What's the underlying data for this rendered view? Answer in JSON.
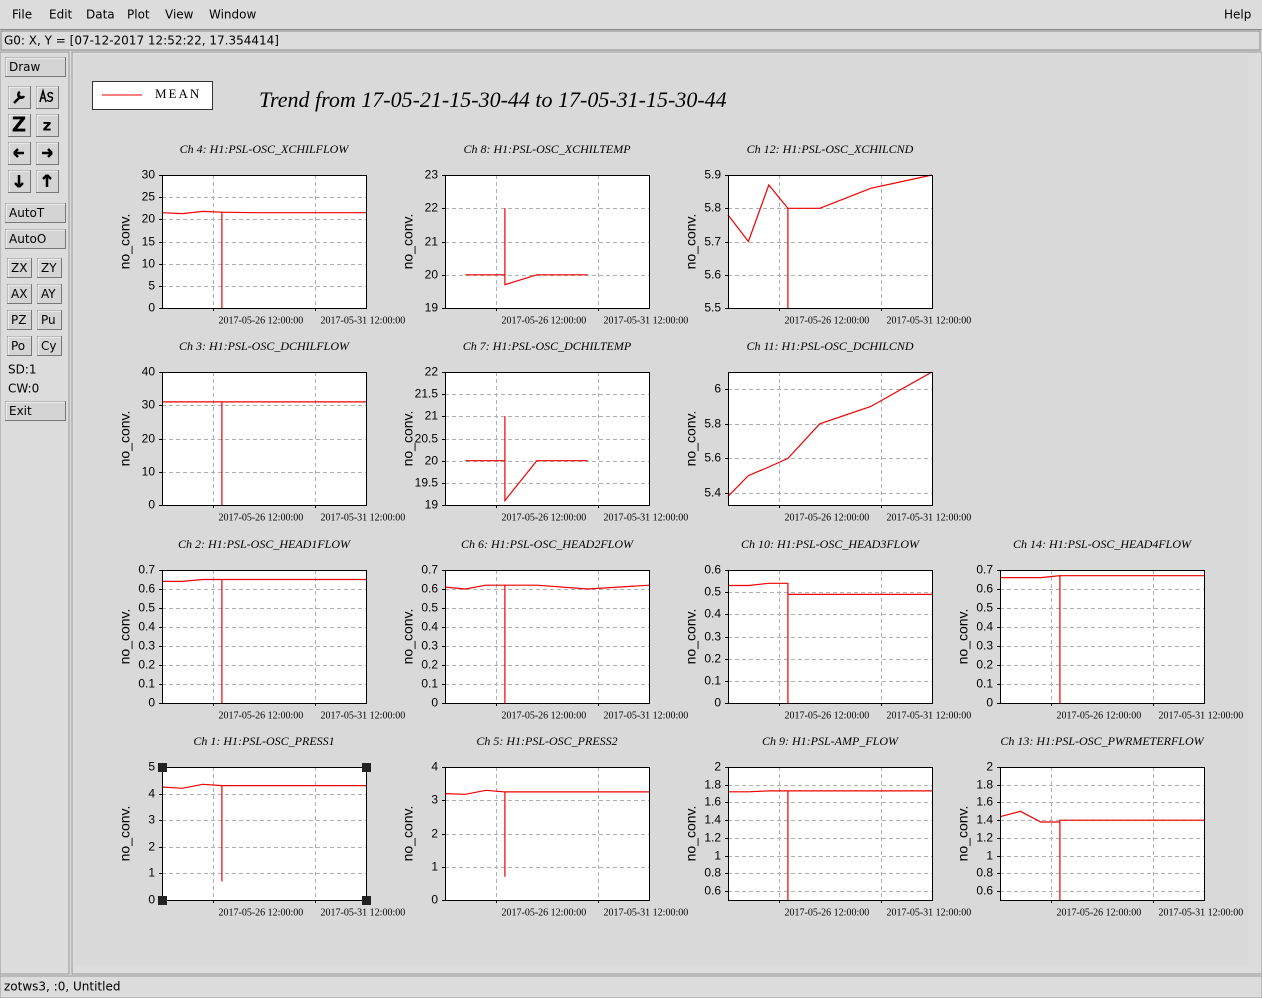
{
  "menu": [
    "File",
    "Edit",
    "Data",
    "Plot",
    "View",
    "Window"
  ],
  "help": "Help",
  "status": "G0: X, Y = [07-12-2017 12:52:22, 17.354414]",
  "toolbar": {
    "draw": "Draw",
    "zoom_big": "Z",
    "zoom_small": "z",
    "auto_t": "AutoT",
    "auto_o": "AutoO",
    "buttons": [
      "ZX",
      "ZY",
      "AX",
      "AY",
      "PZ",
      "Pu",
      "Po",
      "Cy"
    ],
    "sd": "SD:1",
    "cw": "CW:0",
    "exit": "Exit"
  },
  "legend": {
    "label": "MEAN",
    "color": "#ee0000"
  },
  "title": "Trend from 17-05-21-15-30-44 to 17-05-31-15-30-44",
  "footer": "zotws3, :0, Untitled",
  "chart_data": [
    {
      "type": "line",
      "title": "Ch 4: H1:PSL-OSC_XCHILFLOW",
      "y_label": "no_conv.",
      "color": "#ee0000",
      "x": [
        "2017-05-24 00:00:00",
        "2017-05-25 00:00:00",
        "2017-05-26 00:00:00",
        "2017-05-26 22:30:00",
        "2017-05-26 22:30:00",
        "2017-05-26 22:30:00",
        "2017-05-28 12:00:00",
        "2017-05-31 00:00:00",
        "2017-06-03 00:00:00"
      ],
      "values": [
        21.5,
        21.3,
        21.8,
        21.6,
        0,
        21.6,
        21.5,
        21.5,
        21.5
      ],
      "xlim": [
        "2017-05-24 00:00:00",
        "2017-06-03 00:00:00"
      ],
      "xticks": [
        "2017-05-26 12:00:00",
        "2017-05-31 12:00:00"
      ],
      "ylim": [
        0,
        30
      ],
      "yticks": [
        0,
        5,
        10,
        15,
        20,
        25,
        30
      ],
      "grid": true
    },
    {
      "type": "line",
      "title": "Ch 8: H1:PSL-OSC_XCHILTEMP",
      "y_label": "no_conv.",
      "color": "#ee0000",
      "x": [
        "2017-05-24 00:00:00",
        "2017-05-25 00:00:00",
        "2017-05-26 00:00:00",
        "2017-05-26 22:30:00",
        "2017-05-26 22:30:00",
        "2017-05-26 22:30:00",
        "2017-05-28 12:00:00",
        "2017-05-31 00:00:00",
        "2017-06-03 00:00:00"
      ],
      "values": [
        null,
        20,
        20,
        20,
        22,
        19.7,
        20,
        20,
        null
      ],
      "xlim": [
        "2017-05-24 00:00:00",
        "2017-06-03 00:00:00"
      ],
      "xticks": [
        "2017-05-26 12:00:00",
        "2017-05-31 12:00:00"
      ],
      "ylim": [
        19,
        23
      ],
      "yticks": [
        19,
        20,
        21,
        22,
        23
      ],
      "grid": true
    },
    {
      "type": "line",
      "title": "Ch 12: H1:PSL-OSC_XCHILCND",
      "y_label": "no_conv.",
      "color": "#ee0000",
      "x": [
        "2017-05-24 00:00:00",
        "2017-05-25 00:00:00",
        "2017-05-26 00:00:00",
        "2017-05-26 22:30:00",
        "2017-05-26 22:30:00",
        "2017-05-26 22:30:00",
        "2017-05-28 12:00:00",
        "2017-05-31 00:00:00",
        "2017-06-03 00:00:00"
      ],
      "values": [
        5.78,
        5.7,
        5.87,
        5.8,
        5.5,
        5.8,
        5.8,
        5.86,
        5.9
      ],
      "xlim": [
        "2017-05-24 00:00:00",
        "2017-06-03 00:00:00"
      ],
      "xticks": [
        "2017-05-26 12:00:00",
        "2017-05-31 12:00:00"
      ],
      "ylim": [
        5.5,
        5.9
      ],
      "yticks": [
        5.5,
        5.6,
        5.7,
        5.8,
        5.9
      ],
      "grid": true
    },
    {
      "type": "line",
      "title": "Ch 3: H1:PSL-OSC_DCHILFLOW",
      "y_label": "no_conv.",
      "color": "#ee0000",
      "x": [
        "2017-05-24 00:00:00",
        "2017-05-25 00:00:00",
        "2017-05-26 00:00:00",
        "2017-05-26 22:30:00",
        "2017-05-26 22:30:00",
        "2017-05-26 22:30:00",
        "2017-05-28 12:00:00",
        "2017-05-31 00:00:00",
        "2017-06-03 00:00:00"
      ],
      "values": [
        31,
        31,
        31,
        31,
        0,
        31,
        31,
        31,
        31
      ],
      "xlim": [
        "2017-05-24 00:00:00",
        "2017-06-03 00:00:00"
      ],
      "xticks": [
        "2017-05-26 12:00:00",
        "2017-05-31 12:00:00"
      ],
      "ylim": [
        0,
        40
      ],
      "yticks": [
        0,
        10,
        20,
        30,
        40
      ],
      "grid": true
    },
    {
      "type": "line",
      "title": "Ch 7: H1:PSL-OSC_DCHILTEMP",
      "y_label": "no_conv.",
      "color": "#ee0000",
      "x": [
        "2017-05-24 00:00:00",
        "2017-05-25 00:00:00",
        "2017-05-26 00:00:00",
        "2017-05-26 22:30:00",
        "2017-05-26 22:30:00",
        "2017-05-26 22:30:00",
        "2017-05-28 12:00:00",
        "2017-05-31 00:00:00",
        "2017-06-03 00:00:00"
      ],
      "values": [
        null,
        20,
        20,
        20,
        21,
        19.1,
        20,
        20,
        null
      ],
      "xlim": [
        "2017-05-24 00:00:00",
        "2017-06-03 00:00:00"
      ],
      "xticks": [
        "2017-05-26 12:00:00",
        "2017-05-31 12:00:00"
      ],
      "ylim": [
        19,
        22
      ],
      "yticks": [
        19,
        19.5,
        20,
        20.5,
        21,
        21.5,
        22
      ],
      "grid": true
    },
    {
      "type": "line",
      "title": "Ch 11: H1:PSL-OSC_DCHILCND",
      "y_label": "no_conv.",
      "color": "#ee0000",
      "x": [
        "2017-05-24 00:00:00",
        "2017-05-25 00:00:00",
        "2017-05-26 00:00:00",
        "2017-05-26 22:30:00",
        "2017-05-26 22:30:00",
        "2017-05-26 22:30:00",
        "2017-05-28 12:00:00",
        "2017-05-31 00:00:00",
        "2017-06-03 00:00:00"
      ],
      "values": [
        5.38,
        5.5,
        5.55,
        5.6,
        5.6,
        5.6,
        5.8,
        5.9,
        6.1
      ],
      "xlim": [
        "2017-05-24 00:00:00",
        "2017-06-03 00:00:00"
      ],
      "xticks": [
        "2017-05-26 12:00:00",
        "2017-05-31 12:00:00"
      ],
      "ylim": [
        5.33,
        6.1
      ],
      "yticks": [
        5.4,
        5.6,
        5.8,
        6
      ],
      "grid": true
    },
    {
      "type": "line",
      "title": "Ch 2: H1:PSL-OSC_HEAD1FLOW",
      "y_label": "no_conv.",
      "color": "#ee0000",
      "x": [
        "2017-05-24 00:00:00",
        "2017-05-25 00:00:00",
        "2017-05-26 00:00:00",
        "2017-05-26 22:30:00",
        "2017-05-26 22:30:00",
        "2017-05-26 22:30:00",
        "2017-05-28 12:00:00",
        "2017-05-31 00:00:00",
        "2017-06-03 00:00:00"
      ],
      "values": [
        0.64,
        0.64,
        0.65,
        0.65,
        0,
        0.65,
        0.65,
        0.65,
        0.65
      ],
      "xlim": [
        "2017-05-24 00:00:00",
        "2017-06-03 00:00:00"
      ],
      "xticks": [
        "2017-05-26 12:00:00",
        "2017-05-31 12:00:00"
      ],
      "ylim": [
        0,
        0.7
      ],
      "yticks": [
        0,
        0.1,
        0.2,
        0.3,
        0.4,
        0.5,
        0.6,
        0.7
      ],
      "grid": true
    },
    {
      "type": "line",
      "title": "Ch 6: H1:PSL-OSC_HEAD2FLOW",
      "y_label": "no_conv.",
      "color": "#ee0000",
      "x": [
        "2017-05-24 00:00:00",
        "2017-05-25 00:00:00",
        "2017-05-26 00:00:00",
        "2017-05-26 22:30:00",
        "2017-05-26 22:30:00",
        "2017-05-26 22:30:00",
        "2017-05-28 12:00:00",
        "2017-05-31 00:00:00",
        "2017-06-03 00:00:00"
      ],
      "values": [
        0.61,
        0.6,
        0.62,
        0.62,
        0,
        0.62,
        0.62,
        0.6,
        0.62
      ],
      "xlim": [
        "2017-05-24 00:00:00",
        "2017-06-03 00:00:00"
      ],
      "xticks": [
        "2017-05-26 12:00:00",
        "2017-05-31 12:00:00"
      ],
      "ylim": [
        0,
        0.7
      ],
      "yticks": [
        0,
        0.1,
        0.2,
        0.3,
        0.4,
        0.5,
        0.6,
        0.7
      ],
      "grid": true
    },
    {
      "type": "line",
      "title": "Ch 10: H1:PSL-OSC_HEAD3FLOW",
      "y_label": "no_conv.",
      "color": "#ee0000",
      "x": [
        "2017-05-24 00:00:00",
        "2017-05-25 00:00:00",
        "2017-05-26 00:00:00",
        "2017-05-26 22:30:00",
        "2017-05-26 22:30:00",
        "2017-05-26 22:30:00",
        "2017-05-28 12:00:00",
        "2017-05-31 00:00:00",
        "2017-06-03 00:00:00"
      ],
      "values": [
        0.53,
        0.53,
        0.54,
        0.54,
        0,
        0.49,
        0.49,
        0.49,
        0.49
      ],
      "xlim": [
        "2017-05-24 00:00:00",
        "2017-06-03 00:00:00"
      ],
      "xticks": [
        "2017-05-26 12:00:00",
        "2017-05-31 12:00:00"
      ],
      "ylim": [
        0,
        0.6
      ],
      "yticks": [
        0,
        0.1,
        0.2,
        0.3,
        0.4,
        0.5,
        0.6
      ],
      "grid": true
    },
    {
      "type": "line",
      "title": "Ch 14: H1:PSL-OSC_HEAD4FLOW",
      "y_label": "no_conv.",
      "color": "#ee0000",
      "x": [
        "2017-05-24 00:00:00",
        "2017-05-25 00:00:00",
        "2017-05-26 00:00:00",
        "2017-05-26 22:30:00",
        "2017-05-26 22:30:00",
        "2017-05-26 22:30:00",
        "2017-05-28 12:00:00",
        "2017-05-31 00:00:00",
        "2017-06-03 00:00:00"
      ],
      "values": [
        0.66,
        0.66,
        0.66,
        0.67,
        0,
        0.67,
        0.67,
        0.67,
        0.67
      ],
      "xlim": [
        "2017-05-24 00:00:00",
        "2017-06-03 00:00:00"
      ],
      "xticks": [
        "2017-05-26 12:00:00",
        "2017-05-31 12:00:00"
      ],
      "ylim": [
        0,
        0.7
      ],
      "yticks": [
        0,
        0.1,
        0.2,
        0.3,
        0.4,
        0.5,
        0.6,
        0.7
      ],
      "grid": true
    },
    {
      "type": "line",
      "title": "Ch 1: H1:PSL-OSC_PRESS1",
      "y_label": "no_conv.",
      "color": "#ee0000",
      "x": [
        "2017-05-24 00:00:00",
        "2017-05-25 00:00:00",
        "2017-05-26 00:00:00",
        "2017-05-26 22:30:00",
        "2017-05-26 22:30:00",
        "2017-05-26 22:30:00",
        "2017-05-28 12:00:00",
        "2017-05-31 00:00:00",
        "2017-06-03 00:00:00"
      ],
      "values": [
        4.25,
        4.2,
        4.35,
        4.3,
        0.7,
        4.3,
        4.3,
        4.3,
        4.3
      ],
      "xlim": [
        "2017-05-24 00:00:00",
        "2017-06-03 00:00:00"
      ],
      "xticks": [
        "2017-05-26 12:00:00",
        "2017-05-31 12:00:00"
      ],
      "ylim": [
        0,
        5
      ],
      "yticks": [
        0,
        1,
        2,
        3,
        4,
        5
      ],
      "grid": true
    },
    {
      "type": "line",
      "title": "Ch 5: H1:PSL-OSC_PRESS2",
      "y_label": "no_conv.",
      "color": "#ee0000",
      "x": [
        "2017-05-24 00:00:00",
        "2017-05-25 00:00:00",
        "2017-05-26 00:00:00",
        "2017-05-26 22:30:00",
        "2017-05-26 22:30:00",
        "2017-05-26 22:30:00",
        "2017-05-28 12:00:00",
        "2017-05-31 00:00:00",
        "2017-06-03 00:00:00"
      ],
      "values": [
        3.2,
        3.18,
        3.3,
        3.25,
        0.7,
        3.25,
        3.25,
        3.25,
        3.25
      ],
      "xlim": [
        "2017-05-24 00:00:00",
        "2017-06-03 00:00:00"
      ],
      "xticks": [
        "2017-05-26 12:00:00",
        "2017-05-31 12:00:00"
      ],
      "ylim": [
        0,
        4
      ],
      "yticks": [
        0,
        1,
        2,
        3,
        4
      ],
      "grid": true
    },
    {
      "type": "line",
      "title": "Ch 9: H1:PSL-AMP_FLOW",
      "y_label": "no_conv.",
      "color": "#ee0000",
      "x": [
        "2017-05-24 00:00:00",
        "2017-05-25 00:00:00",
        "2017-05-26 00:00:00",
        "2017-05-26 22:30:00",
        "2017-05-26 22:30:00",
        "2017-05-26 22:30:00",
        "2017-05-28 12:00:00",
        "2017-05-31 00:00:00",
        "2017-06-03 00:00:00"
      ],
      "values": [
        1.72,
        1.72,
        1.73,
        1.73,
        0.5,
        1.73,
        1.73,
        1.73,
        1.73
      ],
      "xlim": [
        "2017-05-24 00:00:00",
        "2017-06-03 00:00:00"
      ],
      "xticks": [
        "2017-05-26 12:00:00",
        "2017-05-31 12:00:00"
      ],
      "ylim": [
        0.5,
        2
      ],
      "yticks": [
        0.6,
        0.8,
        1,
        1.2,
        1.4,
        1.6,
        1.8,
        2
      ],
      "grid": true
    },
    {
      "type": "line",
      "title": "Ch 13: H1:PSL-OSC_PWRMETERFLOW",
      "y_label": "no_conv.",
      "color": "#ee0000",
      "x": [
        "2017-05-24 00:00:00",
        "2017-05-25 00:00:00",
        "2017-05-26 00:00:00",
        "2017-05-26 22:30:00",
        "2017-05-26 22:30:00",
        "2017-05-26 22:30:00",
        "2017-05-28 12:00:00",
        "2017-05-31 00:00:00",
        "2017-06-03 00:00:00"
      ],
      "values": [
        1.44,
        1.5,
        1.38,
        1.38,
        0.5,
        1.4,
        1.4,
        1.4,
        1.4
      ],
      "xlim": [
        "2017-05-24 00:00:00",
        "2017-06-03 00:00:00"
      ],
      "xticks": [
        "2017-05-26 12:00:00",
        "2017-05-31 12:00:00"
      ],
      "ylim": [
        0.5,
        2
      ],
      "yticks": [
        0.6,
        0.8,
        1,
        1.2,
        1.4,
        1.6,
        1.8,
        2
      ],
      "grid": true
    }
  ]
}
